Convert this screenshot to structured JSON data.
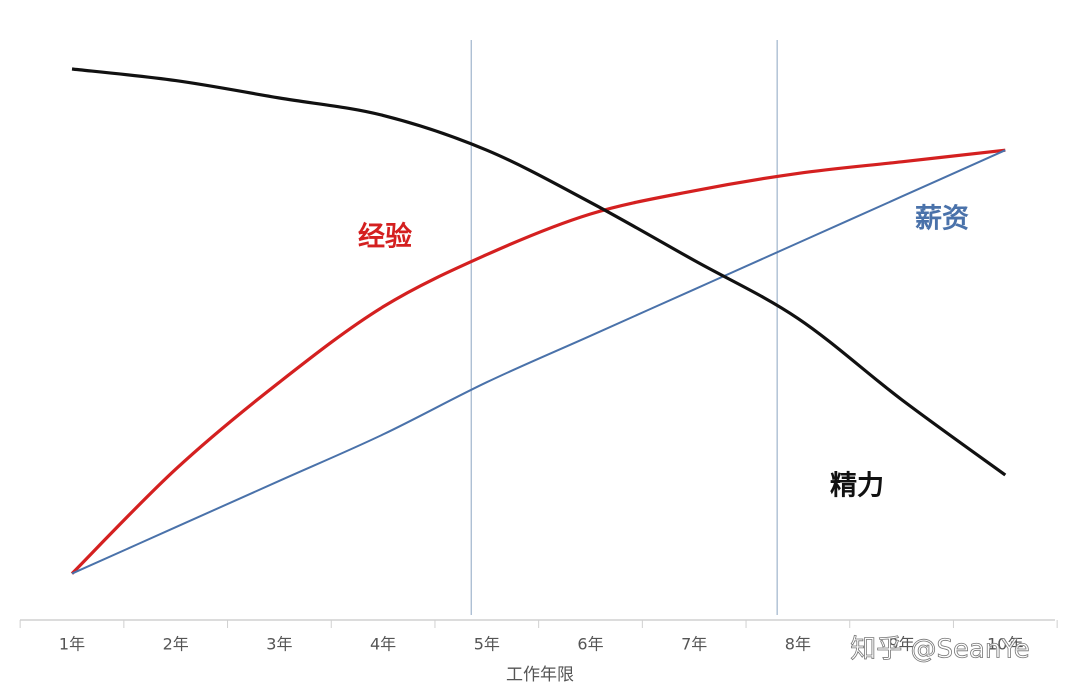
{
  "chart_data": {
    "type": "line",
    "categories": [
      "1年",
      "2年",
      "3年",
      "4年",
      "5年",
      "6年",
      "7年",
      "8年",
      "9年",
      "10年"
    ],
    "x_label": "工作年限",
    "series": [
      {
        "name": "经验",
        "color": "#d42020",
        "values": [
          8,
          26,
          41,
          54,
          63,
          70,
          74,
          77,
          79,
          81
        ]
      },
      {
        "name": "薪资",
        "color": "#4a72aa",
        "values": [
          8,
          16,
          24,
          32,
          41,
          49,
          57,
          65,
          73,
          81
        ]
      },
      {
        "name": "精力",
        "color": "#111111",
        "values": [
          95,
          93,
          90,
          87,
          81,
          72,
          62,
          52,
          38,
          25
        ]
      }
    ],
    "ylim": [
      0,
      100
    ],
    "reference_lines": [
      4.85,
      7.8
    ],
    "watermark": "知乎 @SeanYe"
  }
}
